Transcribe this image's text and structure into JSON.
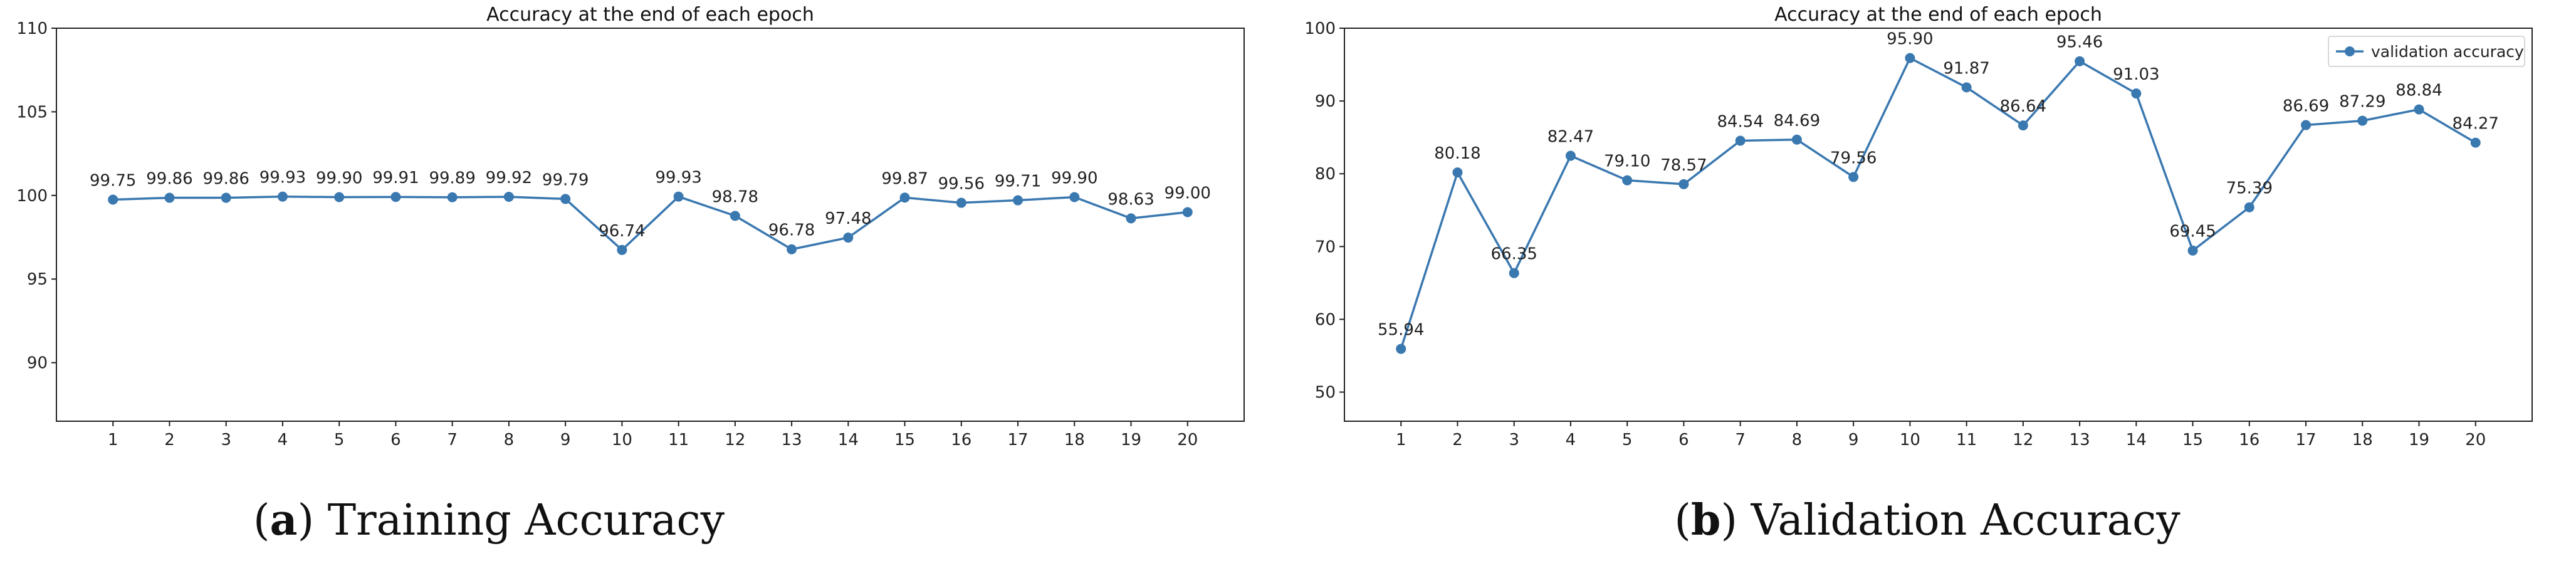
{
  "chart_data": [
    {
      "type": "line",
      "title": "Accuracy at the end of each epoch",
      "caption_letter": "a",
      "caption_text": "Training Accuracy",
      "xlabel": "",
      "ylabel": "",
      "x": [
        1,
        2,
        3,
        4,
        5,
        6,
        7,
        8,
        9,
        10,
        11,
        12,
        13,
        14,
        15,
        16,
        17,
        18,
        19,
        20
      ],
      "xlim": [
        0,
        21
      ],
      "ylim": [
        86.5,
        110
      ],
      "yticks": [
        90,
        95,
        100,
        105,
        110
      ],
      "grid": false,
      "series": [
        {
          "values": [
            99.75,
            99.86,
            99.86,
            99.93,
            99.9,
            99.91,
            99.89,
            99.92,
            99.79,
            96.74,
            99.93,
            98.78,
            96.78,
            97.48,
            99.87,
            99.56,
            99.71,
            99.9,
            98.63,
            99.0
          ],
          "labels": [
            "99.75",
            "99.86",
            "99.86",
            "99.93",
            "99.90",
            "99.91",
            "99.89",
            "99.92",
            "99.79",
            "96.74",
            "99.93",
            "98.78",
            "96.78",
            "97.48",
            "99.87",
            "99.56",
            "99.71",
            "99.90",
            "98.63",
            "99.00"
          ],
          "color": "#3a78b0"
        }
      ]
    },
    {
      "type": "line",
      "title": "Accuracy at the end of each epoch",
      "caption_letter": "b",
      "caption_text": "Validation Accuracy",
      "xlabel": "",
      "ylabel": "",
      "x": [
        1,
        2,
        3,
        4,
        5,
        6,
        7,
        8,
        9,
        10,
        11,
        12,
        13,
        14,
        15,
        16,
        17,
        18,
        19,
        20
      ],
      "xlim": [
        0,
        21
      ],
      "ylim": [
        46,
        100
      ],
      "yticks": [
        50,
        60,
        70,
        80,
        90,
        100
      ],
      "grid": false,
      "legend": "top-right",
      "series": [
        {
          "name": "validation accuracy",
          "values": [
            55.94,
            80.18,
            66.35,
            82.47,
            79.1,
            78.57,
            84.54,
            84.69,
            79.56,
            95.9,
            91.87,
            86.64,
            95.46,
            91.03,
            69.45,
            75.39,
            86.69,
            87.29,
            88.84,
            84.27
          ],
          "labels": [
            "55.94",
            "80.18",
            "66.35",
            "82.47",
            "79.10",
            "78.57",
            "84.54",
            "84.69",
            "79.56",
            "95.90",
            "91.87",
            "86.64",
            "95.46",
            "91.03",
            "69.45",
            "75.39",
            "86.69",
            "87.29",
            "88.84",
            "84.27"
          ],
          "color": "#3a78b0"
        }
      ]
    }
  ]
}
